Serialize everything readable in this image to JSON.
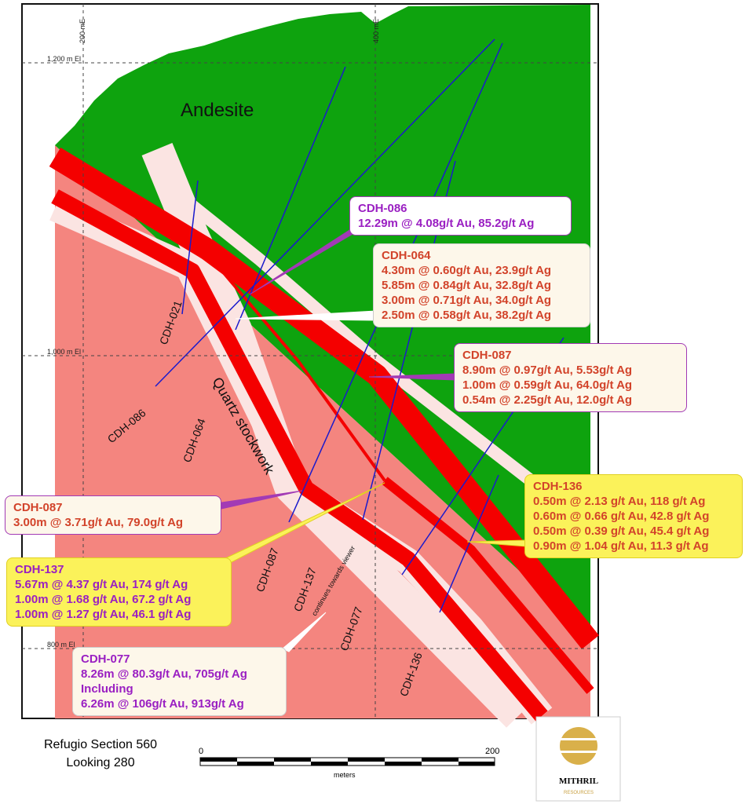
{
  "grid": {
    "labels": [
      "200 mE",
      "400 mE",
      "1,200 m El",
      "1,000 m El",
      "800 m El"
    ]
  },
  "units": {
    "andesite": "Andesite",
    "stockwork": "Quartz stockwork"
  },
  "drillholes": [
    "CDH-021",
    "CDH-086",
    "CDH-064",
    "CDH-087",
    "CDH-137",
    "continues towards viewer",
    "CDH-077",
    "CDH-136"
  ],
  "callouts": [
    {
      "title": "CDH-086",
      "lines": [
        "12.29m @ 4.08g/t Au, 85.2g/t Ag"
      ]
    },
    {
      "title": "CDH-064",
      "lines": [
        "4.30m @ 0.60g/t Au, 23.9g/t Ag",
        "5.85m @ 0.84g/t Au, 32.8g/t Ag",
        "3.00m @ 0.71g/t Au, 34.0g/t Ag",
        "2.50m @ 0.58g/t Au, 38.2g/t Ag"
      ]
    },
    {
      "title": "CDH-087",
      "lines": [
        "8.90m @ 0.97g/t Au, 5.53g/t Ag",
        "1.00m @ 0.59g/t Au, 64.0g/t Ag",
        "0.54m @ 2.25g/t Au, 12.0g/t Ag"
      ]
    },
    {
      "title": "CDH-136",
      "lines": [
        "0.50m @ 2.13 g/t Au, 118 g/t Ag",
        "0.60m @ 0.66 g/t Au, 42.8 g/t Ag",
        "0.50m @ 0.39 g/t Au, 45.4 g/t Ag",
        "0.90m @ 1.04 g/t Au, 11.3 g/t Ag"
      ]
    },
    {
      "title": "CDH-087",
      "lines": [
        "3.00m @ 3.71g/t Au, 79.0g/t Ag"
      ]
    },
    {
      "title": "CDH-137",
      "lines": [
        "5.67m @ 4.37 g/t Au, 174 g/t Ag",
        "1.00m @ 1.68 g/t Au, 67.2 g/t Ag",
        "1.00m @ 1.27 g/t Au, 46.1 g/t Ag"
      ]
    },
    {
      "title": "CDH-077",
      "lines": [
        "8.26m @ 80.3g/t Au, 705g/t Ag",
        "Including",
        "6.26m @ 106g/t Au, 913g/t Ag"
      ]
    }
  ],
  "footer": {
    "section": "Refugio Section 560",
    "looking": "Looking 280"
  },
  "scale": {
    "ticks": [
      "0",
      "200"
    ],
    "unit": "meters"
  },
  "logo": {
    "name": "MITHRIL",
    "subtitle": "RESOURCES"
  }
}
